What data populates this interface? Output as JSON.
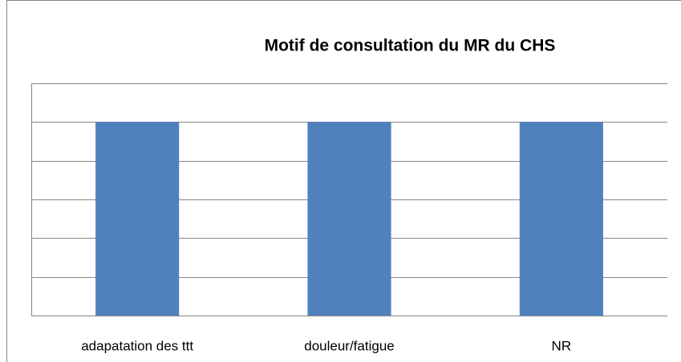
{
  "chart_data": {
    "type": "bar",
    "title": "Motif de consultation du MR du CHS",
    "categories": [
      "adapatation des ttt",
      "douleur/fatigue",
      "NR"
    ],
    "values": [
      5,
      5,
      5
    ],
    "color": "#4f81bd",
    "ylim": [
      0,
      6
    ],
    "yticks": [
      0,
      1,
      2,
      3,
      4,
      5,
      6
    ],
    "grid": true
  }
}
